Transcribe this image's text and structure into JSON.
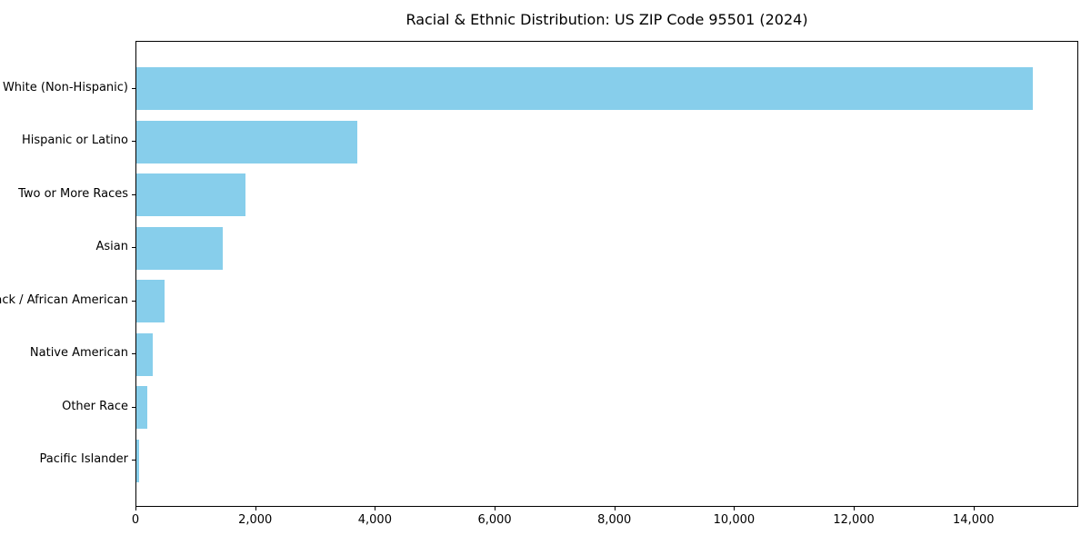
{
  "figure": {
    "background": "#ffffff",
    "text_color": "#000000"
  },
  "chart_data": {
    "type": "bar",
    "orientation": "horizontal",
    "title": "Racial & Ethnic Distribution: US ZIP Code 95501 (2024)",
    "categories": [
      "White (Non-Hispanic)",
      "Hispanic or Latino",
      "Two or More Races",
      "Asian",
      "Black / African American",
      "Native American",
      "Other Race",
      "Pacific Islander"
    ],
    "values": [
      15000,
      3700,
      1830,
      1450,
      470,
      280,
      180,
      50
    ],
    "bar_color": "#87CEEB",
    "xlabel": "",
    "ylabel": "",
    "xlim": [
      0,
      15750
    ],
    "x_ticks": [
      0,
      2000,
      4000,
      6000,
      8000,
      10000,
      12000,
      14000
    ],
    "x_tick_labels": [
      "0",
      "2,000",
      "4,000",
      "6,000",
      "8,000",
      "10,000",
      "12,000",
      "14,000"
    ],
    "grid": false,
    "legend": null
  }
}
